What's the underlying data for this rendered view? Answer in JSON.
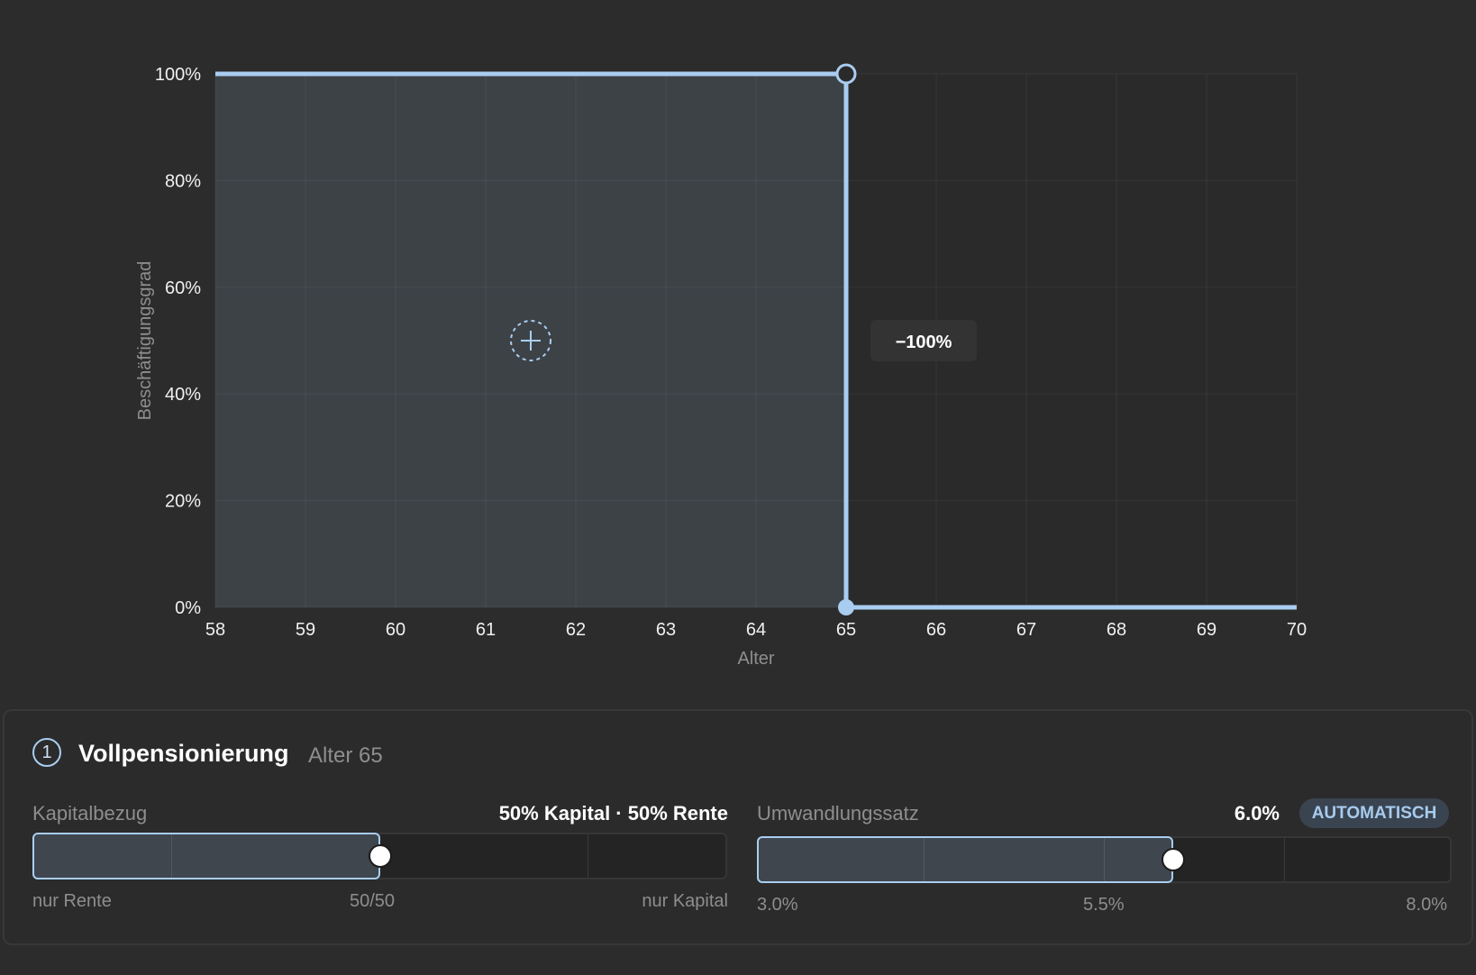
{
  "chart_data": {
    "type": "area",
    "x": [
      58,
      65,
      65,
      70
    ],
    "y": [
      100,
      100,
      0,
      0
    ],
    "xlim": [
      58,
      70
    ],
    "ylim": [
      0,
      100
    ],
    "x_ticks": [
      "58",
      "59",
      "60",
      "61",
      "62",
      "63",
      "64",
      "65",
      "66",
      "67",
      "68",
      "69",
      "70"
    ],
    "y_ticks": [
      "0%",
      "20%",
      "40%",
      "60%",
      "80%",
      "100%"
    ],
    "xlabel": "Alter",
    "ylabel": "Beschäftigungsgrad",
    "grid": true,
    "step": {
      "age": 65,
      "from": 100,
      "to": 0,
      "label": "−100%"
    },
    "add_point_icon": "plus-circle-icon",
    "colors": {
      "line": "#a9cdf0",
      "fill": "#3d4247",
      "plot_bg": "#2a2a2a"
    }
  },
  "event": {
    "number": "1",
    "title": "Vollpensionierung",
    "subtitle": "Alter 65"
  },
  "capital": {
    "label": "Kapitalbezug",
    "value": "50% Kapital · 50% Rente",
    "position": 0.5,
    "left_label": "nur Rente",
    "mid_label": "50/50",
    "right_label": "nur Kapital"
  },
  "conversion": {
    "label": "Umwandlungssatz",
    "value": "6.0%",
    "badge": "AUTOMATISCH",
    "rate": 6.0,
    "min": 3.0,
    "max": 8.0,
    "min_label": "3.0%",
    "mid_label": "5.5%",
    "max_label": "8.0%"
  }
}
